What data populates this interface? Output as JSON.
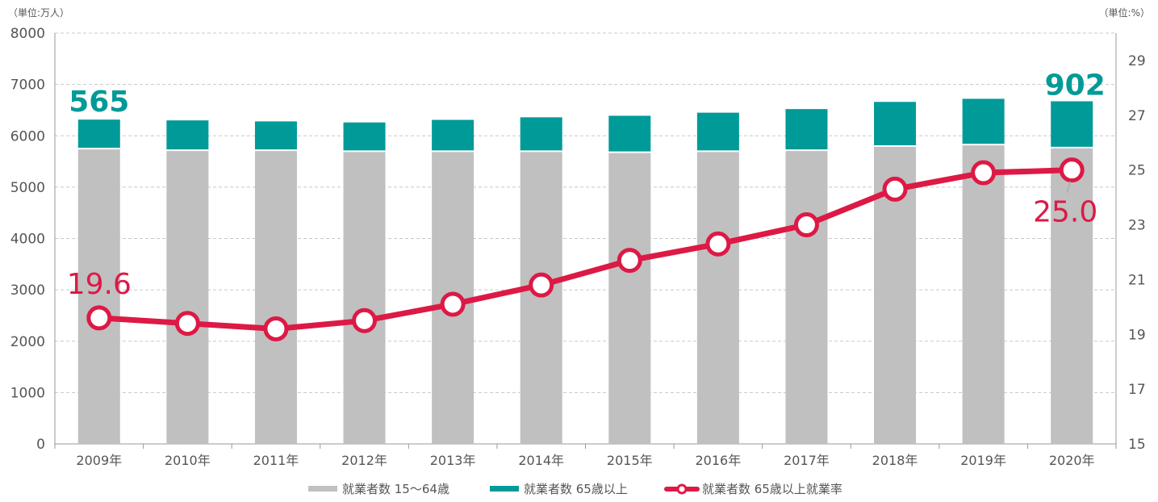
{
  "chart_data": {
    "type": "bar+line",
    "left_axis_unit": "（単位:万人）",
    "right_axis_unit": "（単位:%）",
    "ylim_left": [
      0,
      8000
    ],
    "yticks_left": [
      0,
      1000,
      2000,
      3000,
      4000,
      5000,
      6000,
      7000,
      8000
    ],
    "ylim_right": [
      15,
      30
    ],
    "yticks_right": [
      15,
      17,
      19,
      21,
      23,
      25,
      27,
      29
    ],
    "categories": [
      "2009年",
      "2010年",
      "2011年",
      "2012年",
      "2013年",
      "2014年",
      "2015年",
      "2016年",
      "2017年",
      "2018年",
      "2019年",
      "2020年"
    ],
    "series": [
      {
        "name": "就業者数 15～64歳",
        "kind": "stacked-bar",
        "color": "#c0c0c0",
        "values": [
          5750,
          5720,
          5720,
          5700,
          5700,
          5700,
          5680,
          5700,
          5720,
          5800,
          5830,
          5770
        ]
      },
      {
        "name": "就業者数 65歳以上",
        "kind": "stacked-bar",
        "color": "#009a98",
        "values": [
          565,
          580,
          560,
          560,
          610,
          660,
          710,
          750,
          800,
          860,
          890,
          902
        ]
      },
      {
        "name": "就業者数 65歳以上就業率",
        "kind": "line",
        "axis": "right",
        "color": "#dd1945",
        "values": [
          19.6,
          19.4,
          19.2,
          19.5,
          20.1,
          20.8,
          21.7,
          22.3,
          23.0,
          24.3,
          24.9,
          25.0
        ]
      }
    ],
    "annotations": [
      {
        "text": "565",
        "series": 1,
        "index": 0,
        "color": "#009a98"
      },
      {
        "text": "902",
        "series": 1,
        "index": 11,
        "color": "#009a98"
      },
      {
        "text": "19.6",
        "series": 2,
        "index": 0,
        "color": "#dd1945"
      },
      {
        "text": "25.0",
        "series": 2,
        "index": 11,
        "color": "#dd1945"
      }
    ],
    "grid": true,
    "legend_position": "bottom-center"
  }
}
